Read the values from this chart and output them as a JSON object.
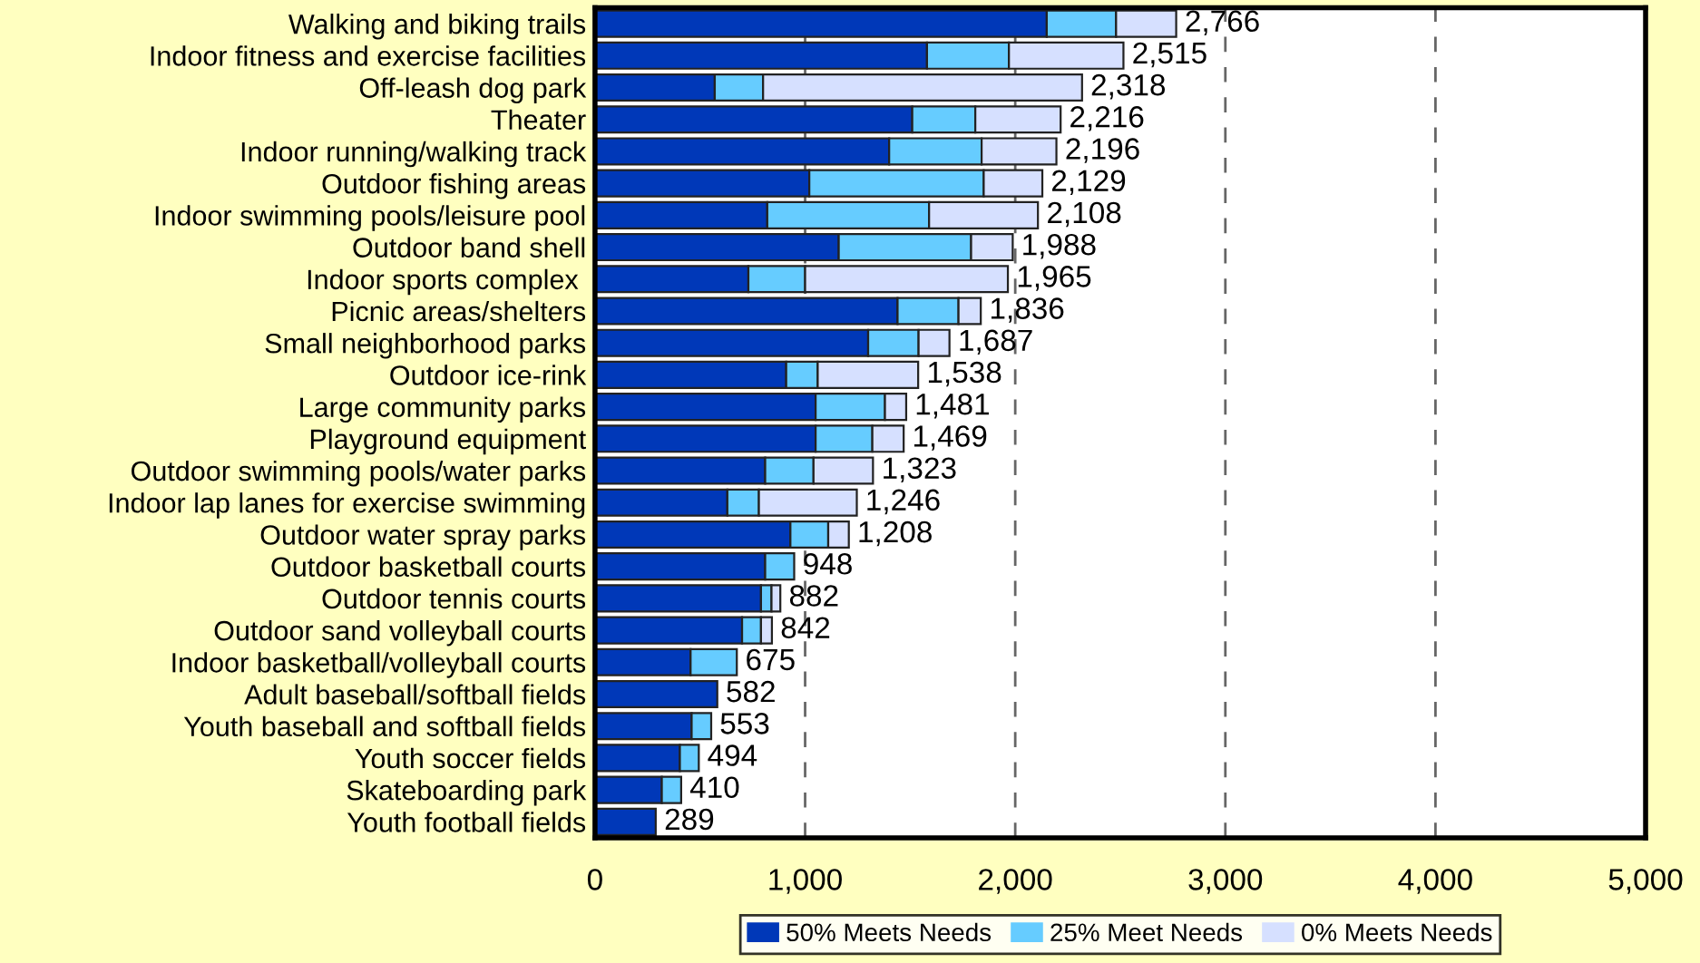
{
  "chart_data": {
    "type": "bar",
    "orientation": "horizontal",
    "stacked": true,
    "categories": [
      "Walking and biking trails",
      "Indoor fitness and exercise facilities",
      "Off-leash dog park",
      "Theater",
      "Indoor running/walking track",
      "Outdoor fishing areas",
      "Indoor swimming pools/leisure pool",
      "Outdoor band shell",
      "Indoor sports complex ",
      "Picnic areas/shelters",
      "Small neighborhood parks",
      "Outdoor ice-rink",
      "Large community parks",
      "Playground equipment",
      "Outdoor swimming pools/water parks",
      "Indoor lap lanes for exercise swimming",
      "Outdoor water spray parks",
      "Outdoor basketball courts",
      "Outdoor tennis courts",
      "Outdoor sand volleyball courts",
      "Indoor basketball/volleyball courts",
      "Adult baseball/softball fields",
      "Youth baseball and softball fields",
      "Youth soccer fields",
      "Skateboarding park",
      "Youth football fields"
    ],
    "series": [
      {
        "name": "50% Meets Needs",
        "color": "#0038b8",
        "values": [
          2150,
          1580,
          570,
          1510,
          1400,
          1020,
          820,
          1160,
          730,
          1440,
          1300,
          910,
          1050,
          1050,
          810,
          630,
          930,
          810,
          790,
          700,
          455,
          582,
          460,
          404,
          318,
          289
        ]
      },
      {
        "name": "25% Meet Needs",
        "color": "#66ccff",
        "values": [
          330,
          390,
          230,
          300,
          440,
          830,
          770,
          630,
          270,
          290,
          240,
          150,
          330,
          270,
          230,
          150,
          180,
          138,
          50,
          90,
          220,
          null,
          93,
          90,
          92,
          null
        ]
      },
      {
        "name": "0% Meets Needs",
        "color": "#d6e0ff",
        "values": [
          286,
          545,
          1518,
          406,
          356,
          279,
          518,
          198,
          965,
          106,
          147,
          478,
          101,
          149,
          283,
          466,
          98,
          null,
          42,
          52,
          null,
          null,
          null,
          null,
          null,
          null
        ]
      }
    ],
    "totals": [
      "2,766",
      "2,515",
      "2,318",
      "2,216",
      "2,196",
      "2,129",
      "2,108",
      "1,988",
      "1,965",
      "1,836",
      "1,687",
      "1,538",
      "1,481",
      "1,469",
      "1,323",
      "1,246",
      "1,208",
      "948",
      "882",
      "842",
      "675",
      "582",
      "553",
      "494",
      "410",
      "289"
    ],
    "xlim": [
      0,
      5000
    ],
    "xticks": [
      0,
      {
        "value": 1000,
        "label": "1,000"
      },
      {
        "value": 2000,
        "label": "2,000"
      },
      {
        "value": 3000,
        "label": "3,000"
      },
      {
        "value": 4000,
        "label": "4,000"
      },
      {
        "value": 5000,
        "label": "5,000"
      }
    ],
    "grid": "x",
    "legend": "bottom"
  }
}
